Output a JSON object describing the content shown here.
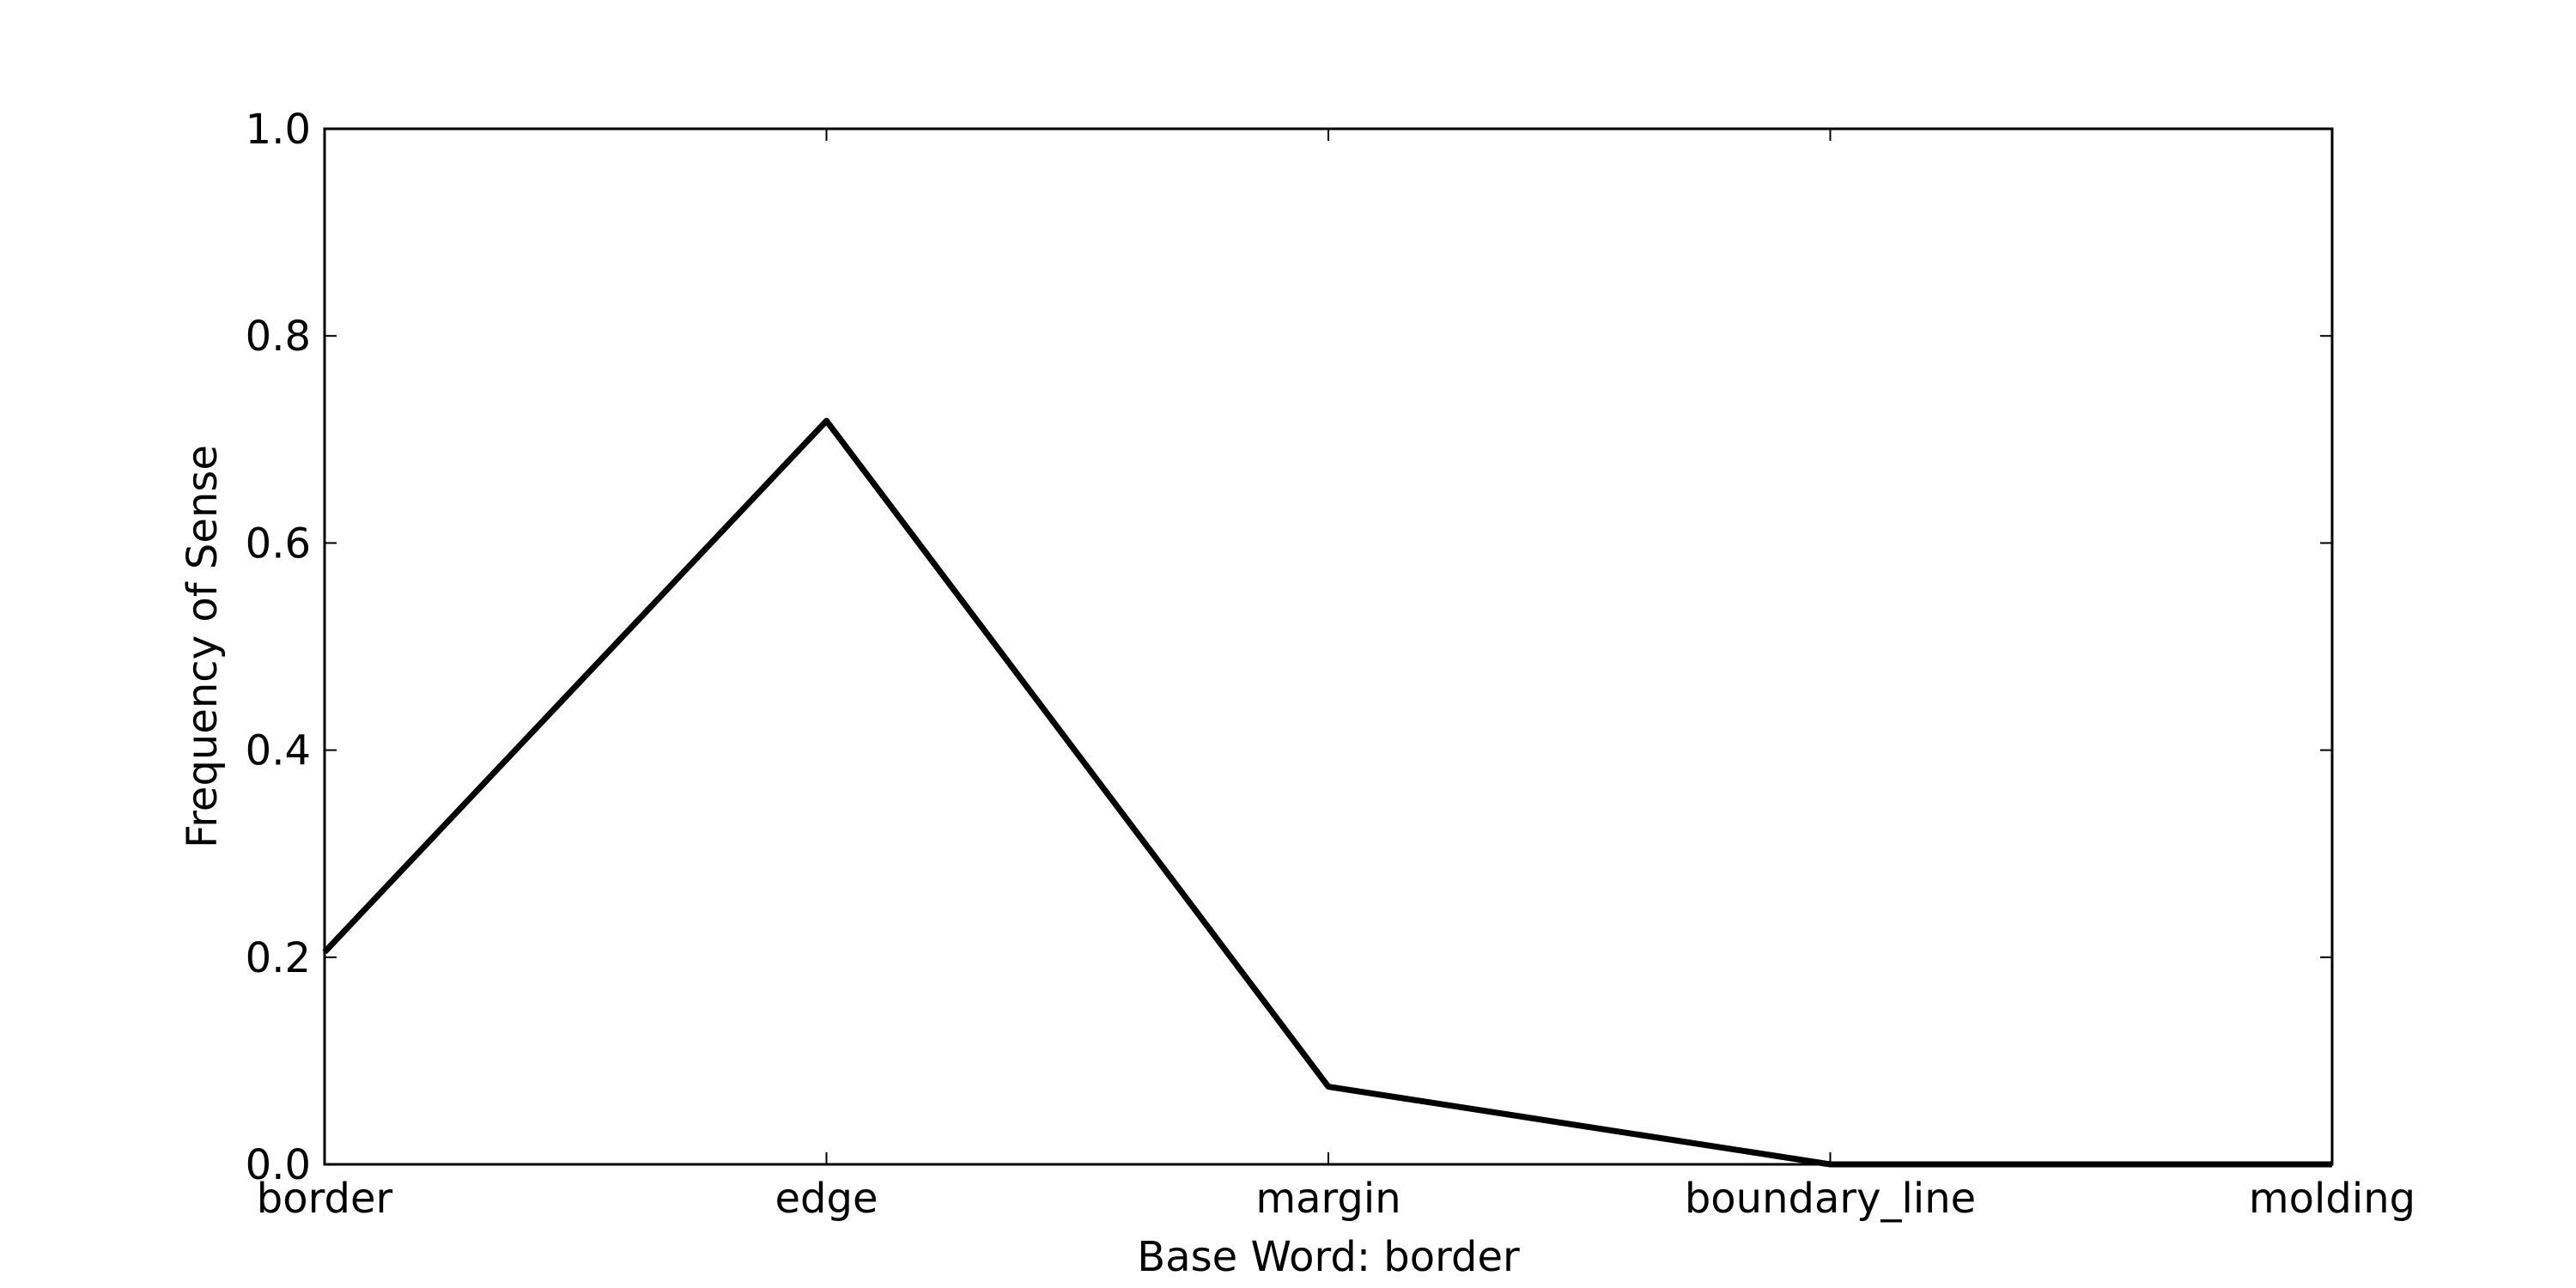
{
  "chart_data": {
    "type": "line",
    "title": "",
    "xlabel": "Base Word: border",
    "ylabel": "Frequency of Sense",
    "categories": [
      "border",
      "edge",
      "margin",
      "boundary_line",
      "molding"
    ],
    "series": [
      {
        "values": [
          0.205,
          0.718,
          0.075,
          0.0,
          0.0
        ],
        "color": "#000000"
      }
    ],
    "ylim": [
      0.0,
      1.0
    ],
    "yticks": [
      0.0,
      0.2,
      0.4,
      0.6,
      0.8,
      1.0
    ],
    "ytick_labels": [
      "0.0",
      "0.2",
      "0.4",
      "0.6",
      "0.8",
      "1.0"
    ],
    "grid": false,
    "legend": "none"
  }
}
